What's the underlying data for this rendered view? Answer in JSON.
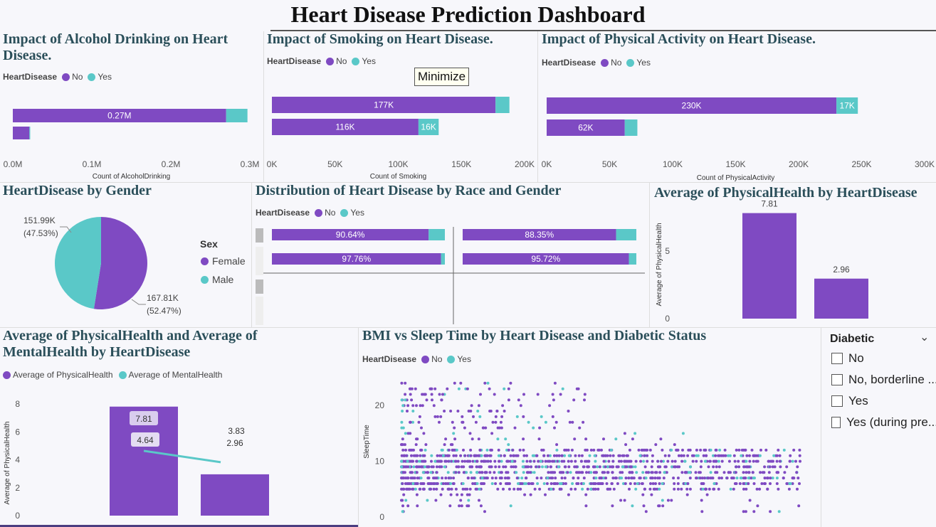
{
  "title": "Heart Disease Prediction Dashboard",
  "tooltip": "Minimize",
  "colors": {
    "no": "#7f4ac2",
    "yes": "#5ac8c8",
    "title": "#2b4f5a"
  },
  "legend": {
    "heart_title": "HeartDisease",
    "no": "No",
    "yes": "Yes"
  },
  "alcohol": {
    "title": "Impact of Alcohol Drinking on Heart Disease.",
    "chart_data": {
      "type": "bar",
      "orientation": "horizontal",
      "stacked": true,
      "xlabel": "Count of AlcoholDrinking",
      "ticks": [
        "0.0M",
        "0.1M",
        "0.2M",
        "0.3M"
      ],
      "xlim": [
        0,
        0.3
      ],
      "series": [
        {
          "name": "No",
          "values": [
            0.27,
            0.021
          ]
        },
        {
          "name": "Yes",
          "values": [
            0.027,
            0.001
          ]
        }
      ],
      "labels": [
        "0.27M",
        ""
      ]
    }
  },
  "smoking": {
    "title": "Impact of Smoking on Heart Disease.",
    "chart_data": {
      "type": "bar",
      "orientation": "horizontal",
      "stacked": true,
      "xlabel": "Count of Smoking",
      "ticks": [
        "0K",
        "50K",
        "100K",
        "150K",
        "200K"
      ],
      "xlim": [
        0,
        200
      ],
      "series": [
        {
          "name": "No",
          "values": [
            177,
            116
          ]
        },
        {
          "name": "Yes",
          "values": [
            11,
            16
          ]
        }
      ],
      "labels_no": [
        "177K",
        "116K"
      ],
      "labels_yes": [
        "",
        "16K"
      ]
    }
  },
  "activity": {
    "title": "Impact of Physical Activity on Heart Disease.",
    "chart_data": {
      "type": "bar",
      "orientation": "horizontal",
      "stacked": true,
      "xlabel": "Count of PhysicalActivity",
      "ticks": [
        "0K",
        "50K",
        "100K",
        "150K",
        "200K",
        "250K",
        "300K"
      ],
      "xlim": [
        0,
        300
      ],
      "series": [
        {
          "name": "No",
          "values": [
            230,
            62
          ]
        },
        {
          "name": "Yes",
          "values": [
            17,
            10
          ]
        }
      ],
      "labels_no": [
        "230K",
        "62K"
      ],
      "labels_yes": [
        "17K",
        ""
      ]
    }
  },
  "gender": {
    "title": "HeartDisease by Gender",
    "legend_title": "Sex",
    "chart_data": {
      "type": "pie",
      "slices": [
        {
          "name": "Female",
          "value": 167.81,
          "label": "167.81K",
          "pct": "(52.47%)"
        },
        {
          "name": "Male",
          "value": 151.99,
          "label": "151.99K",
          "pct": "(47.53%)"
        }
      ]
    }
  },
  "race": {
    "title": "Distribution of Heart Disease by Race and Gender",
    "chart_data": {
      "type": "bar",
      "orientation": "horizontal",
      "stacked": true,
      "percent": true,
      "panels": [
        {
          "no": [
            90.64,
            97.76
          ],
          "labels": [
            "90.64%",
            "97.76%"
          ]
        },
        {
          "no": [
            88.35,
            95.72
          ],
          "labels": [
            "88.35%",
            "95.72%"
          ]
        }
      ]
    }
  },
  "avgph": {
    "title": "Average of PhysicalHealth by HeartDisease",
    "chart_data": {
      "type": "bar",
      "ylabel": "Average of PhysicalHealth",
      "values": [
        7.81,
        2.96
      ],
      "labels": [
        "7.81",
        "2.96"
      ],
      "ticks": [
        "0",
        "5"
      ],
      "ylim": [
        0,
        9
      ]
    }
  },
  "combo": {
    "title": "Average of PhysicalHealth and Average of MentalHealth by HeartDisease",
    "legend_a": "Average of PhysicalHealth",
    "legend_b": "Average of MentalHealth",
    "chart_data": {
      "type": "bar",
      "ylabel": "Average of PhysicalHealth",
      "bars": [
        7.81,
        2.96
      ],
      "line": [
        4.64,
        3.83
      ],
      "bar_labels": [
        "7.81",
        "2.96"
      ],
      "line_labels": [
        "4.64",
        "3.83"
      ],
      "ticks": [
        "0",
        "2",
        "4",
        "6",
        "8"
      ],
      "ylim": [
        0,
        8
      ]
    }
  },
  "scatter": {
    "title": "BMI vs Sleep Time by Heart Disease and Diabetic Status",
    "chart_data": {
      "type": "scatter",
      "ylabel": "SleepTime",
      "ticks": [
        "0",
        "10",
        "20"
      ],
      "ylim": [
        0,
        25
      ],
      "note": "dense cloud of points; y ranges roughly 1-24, x (BMI) spread across the axis"
    }
  },
  "slicer": {
    "title": "Diabetic",
    "options": [
      "No",
      "No, borderline ...",
      "Yes",
      "Yes (during pre..."
    ]
  }
}
